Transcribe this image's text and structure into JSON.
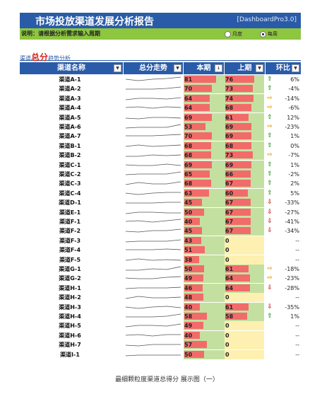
{
  "header": {
    "title": "市场投放渠道发展分析报告",
    "version": "[DashboardPro3.0]"
  },
  "instruction": {
    "text": "说明：请根据分析需求输入周期",
    "options": [
      {
        "label": "月度",
        "selected": false
      },
      {
        "label": "每周",
        "selected": true
      }
    ]
  },
  "subtitle": {
    "prefix": "渠道",
    "emph": "总分",
    "suffix": "趋势分析"
  },
  "columns": {
    "name": "渠道名称",
    "trend": "总分走势",
    "current": "本期",
    "previous": "上期",
    "ratio": "环比"
  },
  "colors": {
    "header": "#2a5ba8",
    "bar": "#f26b6b",
    "up": "#3a9b33",
    "side": "#e8a51d",
    "down": "#c9302c"
  },
  "rows": [
    {
      "name": "渠道A-1",
      "cur": "81",
      "prv": "76",
      "dir": "up",
      "pct": "6%"
    },
    {
      "name": "渠道A-2",
      "cur": "70",
      "prv": "73",
      "dir": "up",
      "pct": "-4%"
    },
    {
      "name": "渠道A-3",
      "cur": "64",
      "prv": "74",
      "dir": "side",
      "pct": "-14%"
    },
    {
      "name": "渠道A-4",
      "cur": "64",
      "prv": "68",
      "dir": "side",
      "pct": "-6%"
    },
    {
      "name": "渠道A-5",
      "cur": "69",
      "prv": "61",
      "dir": "up",
      "pct": "12%"
    },
    {
      "name": "渠道A-6",
      "cur": "53",
      "prv": "69",
      "dir": "side",
      "pct": "-23%"
    },
    {
      "name": "渠道A-7",
      "cur": "70",
      "prv": "69",
      "dir": "up",
      "pct": "1%"
    },
    {
      "name": "渠道B-1",
      "cur": "68",
      "prv": "68",
      "dir": "up",
      "pct": "0%"
    },
    {
      "name": "渠道B-2",
      "cur": "68",
      "prv": "73",
      "dir": "side",
      "pct": "-7%"
    },
    {
      "name": "渠道C-1",
      "cur": "69",
      "prv": "69",
      "dir": "up",
      "pct": "1%"
    },
    {
      "name": "渠道C-2",
      "cur": "65",
      "prv": "66",
      "dir": "up",
      "pct": "-2%"
    },
    {
      "name": "渠道C-3",
      "cur": "68",
      "prv": "67",
      "dir": "up",
      "pct": "2%"
    },
    {
      "name": "渠道C-4",
      "cur": "63",
      "prv": "60",
      "dir": "up",
      "pct": "5%"
    },
    {
      "name": "渠道D-1",
      "cur": "45",
      "prv": "67",
      "dir": "down",
      "pct": "-33%"
    },
    {
      "name": "渠道E-1",
      "cur": "50",
      "prv": "67",
      "dir": "down",
      "pct": "-27%"
    },
    {
      "name": "渠道F-1",
      "cur": "40",
      "prv": "67",
      "dir": "down",
      "pct": "-41%"
    },
    {
      "name": "渠道F-2",
      "cur": "45",
      "prv": "67",
      "dir": "down",
      "pct": "-34%"
    },
    {
      "name": "渠道F-3",
      "cur": "43",
      "prv": "0",
      "dir": "",
      "pct": "--"
    },
    {
      "name": "渠道F-4",
      "cur": "51",
      "prv": "0",
      "dir": "",
      "pct": "--"
    },
    {
      "name": "渠道F-5",
      "cur": "38",
      "prv": "0",
      "dir": "",
      "pct": "--"
    },
    {
      "name": "渠道G-1",
      "cur": "50",
      "prv": "61",
      "dir": "side",
      "pct": "-18%"
    },
    {
      "name": "渠道G-2",
      "cur": "49",
      "prv": "64",
      "dir": "side",
      "pct": "-23%"
    },
    {
      "name": "渠道H-1",
      "cur": "46",
      "prv": "64",
      "dir": "down",
      "pct": "-28%"
    },
    {
      "name": "渠道H-2",
      "cur": "48",
      "prv": "0",
      "dir": "",
      "pct": "--"
    },
    {
      "name": "渠道H-3",
      "cur": "40",
      "prv": "61",
      "dir": "down",
      "pct": "-35%"
    },
    {
      "name": "渠道H-4",
      "cur": "58",
      "prv": "58",
      "dir": "up",
      "pct": "1%"
    },
    {
      "name": "渠道H-5",
      "cur": "49",
      "prv": "0",
      "dir": "",
      "pct": "--"
    },
    {
      "name": "渠道H-6",
      "cur": "40",
      "prv": "0",
      "dir": "",
      "pct": "--"
    },
    {
      "name": "渠道H-7",
      "cur": "57",
      "prv": "0",
      "dir": "",
      "pct": "--"
    },
    {
      "name": "渠道I-1",
      "cur": "50",
      "prv": "0",
      "dir": "",
      "pct": "--"
    }
  ],
  "caption": "最细颗粒度渠道总得分 展示图（一）"
}
